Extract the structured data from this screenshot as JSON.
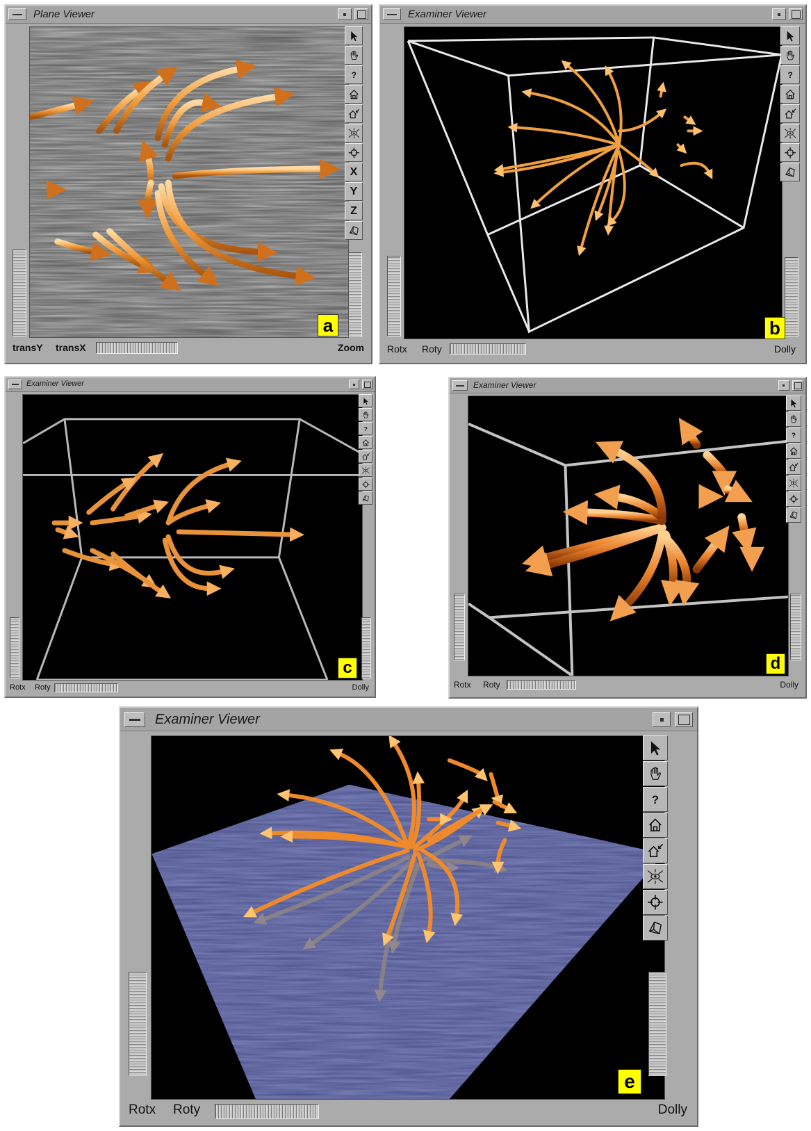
{
  "viewers": [
    {
      "id": "a",
      "title": "Plane Viewer",
      "tools": [
        "pick-arrow-icon",
        "hand-icon",
        "help-icon",
        "home-icon",
        "set-home-icon",
        "view-all-icon",
        "seek-icon",
        "X",
        "Y",
        "Z",
        "perspective-icon"
      ],
      "bottom_left_label": "transY",
      "bottom_mid_label": "transX",
      "bottom_right_label": "Zoom",
      "panel_label": "a",
      "background": "lic-gray"
    },
    {
      "id": "b",
      "title": "Examiner Viewer",
      "tools": [
        "pick-arrow-icon",
        "hand-icon",
        "help-icon",
        "home-icon",
        "set-home-icon",
        "view-all-icon",
        "seek-icon",
        "perspective-icon"
      ],
      "bottom_left_label": "Rotx",
      "bottom_mid_label": "Roty",
      "bottom_right_label": "Dolly",
      "panel_label": "b",
      "background": "black"
    },
    {
      "id": "c",
      "title": "Examiner Viewer",
      "tools": [
        "pick-arrow-icon",
        "hand-icon",
        "help-icon",
        "home-icon",
        "set-home-icon",
        "view-all-icon",
        "seek-icon",
        "perspective-icon"
      ],
      "bottom_left_label": "Rotx",
      "bottom_mid_label": "Roty",
      "bottom_right_label": "Dolly",
      "panel_label": "c",
      "background": "black"
    },
    {
      "id": "d",
      "title": "Examiner Viewer",
      "tools": [
        "pick-arrow-icon",
        "hand-icon",
        "help-icon",
        "home-icon",
        "set-home-icon",
        "view-all-icon",
        "seek-icon",
        "perspective-icon"
      ],
      "bottom_left_label": "Rotx",
      "bottom_mid_label": "Roty",
      "bottom_right_label": "Dolly",
      "panel_label": "d",
      "background": "black"
    },
    {
      "id": "e",
      "title": "Examiner Viewer",
      "tools": [
        "pick-arrow-icon",
        "hand-icon",
        "help-icon",
        "home-icon",
        "set-home-icon",
        "view-all-icon",
        "seek-icon",
        "perspective-icon"
      ],
      "bottom_left_label": "Rotx",
      "bottom_mid_label": "Roty",
      "bottom_right_label": "Dolly",
      "panel_label": "e",
      "background": "black-with-blue-lic-plane"
    }
  ],
  "colors": {
    "arrow": "#f0a040",
    "arrow_dark": "#c06010",
    "badge": "#ffff00",
    "window": "#ababab",
    "lic_plane": "#3a3f7a"
  }
}
